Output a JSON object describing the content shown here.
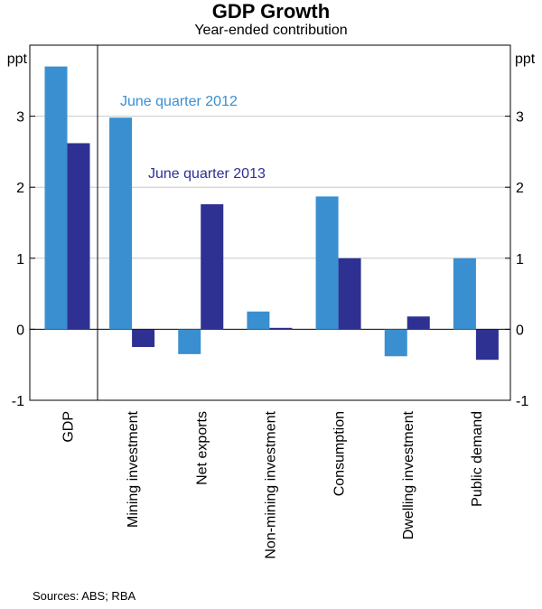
{
  "chart_data": {
    "type": "bar",
    "title": "GDP Growth",
    "subtitle": "Year-ended contribution",
    "ylabel_left": "ppt",
    "ylabel_right": "ppt",
    "ylim": [
      -1,
      4
    ],
    "yticks": [
      -1,
      0,
      1,
      2,
      3
    ],
    "categories": [
      "GDP",
      "Mining investment",
      "Net exports",
      "Non-mining investment",
      "Consumption",
      "Dwelling investment",
      "Public demand"
    ],
    "series": [
      {
        "name": "June quarter 2012",
        "color": "#3a8fd0",
        "values": [
          3.7,
          2.98,
          -0.35,
          0.25,
          1.87,
          -0.38,
          1.0
        ]
      },
      {
        "name": "June quarter 2013",
        "color": "#2e3192",
        "values": [
          2.62,
          -0.25,
          1.76,
          0.02,
          1.0,
          0.18,
          -0.43
        ]
      }
    ],
    "annotations": [
      {
        "text": "June quarter 2012",
        "series": 0
      },
      {
        "text": "June quarter 2013",
        "series": 1
      }
    ],
    "source": "Sources: ABS; RBA"
  }
}
